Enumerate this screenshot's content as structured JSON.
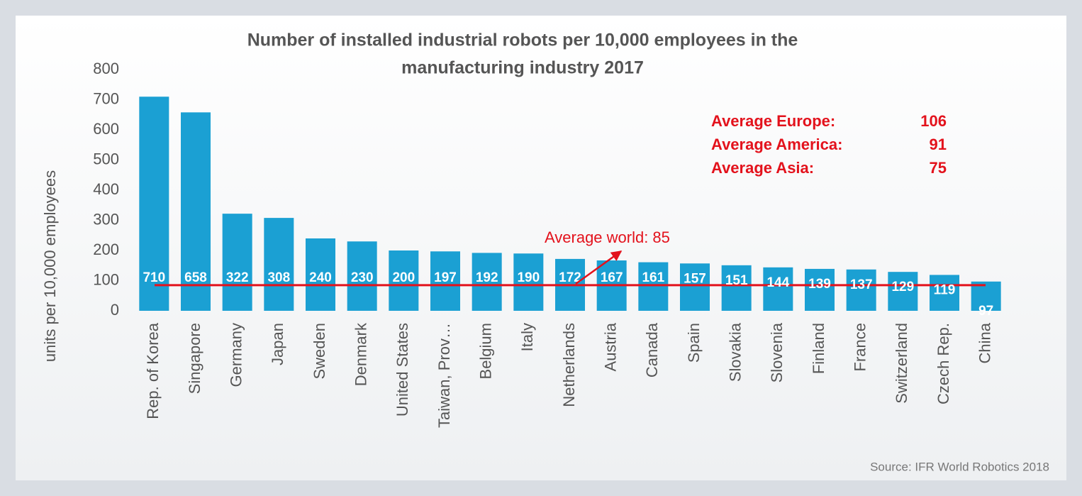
{
  "chart_data": {
    "type": "bar",
    "title": [
      "Number of installed industrial robots per 10,000 employees in the",
      "manufacturing industry 2017"
    ],
    "y_label": "units per 10,000 employees",
    "categories": [
      "Rep. of Korea",
      "Singapore",
      "Germany",
      "Japan",
      "Sweden",
      "Denmark",
      "United States",
      "Taiwan, Prov…",
      "Belgium",
      "Italy",
      "Netherlands",
      "Austria",
      "Canada",
      "Spain",
      "Slovakia",
      "Slovenia",
      "Finland",
      "France",
      "Switzerland",
      "Czech Rep.",
      "China"
    ],
    "values": [
      710,
      658,
      322,
      308,
      240,
      230,
      200,
      197,
      192,
      190,
      172,
      167,
      161,
      157,
      151,
      144,
      139,
      137,
      129,
      119,
      97
    ],
    "color": "#1ba0d3",
    "ylim": [
      0,
      800
    ],
    "yticks": [
      0,
      100,
      200,
      300,
      400,
      500,
      600,
      700,
      800
    ],
    "grid": false,
    "world_average": {
      "label": "Average world:",
      "value": 85,
      "color": "#e3121c"
    },
    "averages": [
      {
        "label": "Average Europe:",
        "value": 106
      },
      {
        "label": "Average America:",
        "value": 91
      },
      {
        "label": "Average Asia:",
        "value": 75
      }
    ],
    "source": "Source: IFR World Robotics 2018"
  }
}
